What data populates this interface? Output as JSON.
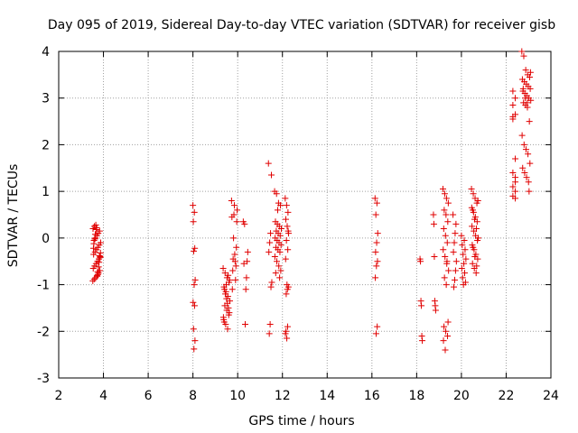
{
  "chart_data": {
    "type": "scatter",
    "title": "Day 095 of 2019, Sidereal Day-to-day VTEC variation (SDTVAR) for receiver gisb",
    "xlabel": "GPS time / hours",
    "ylabel": "SDTVAR / TECUs",
    "xlim": [
      2,
      24
    ],
    "ylim": [
      -3,
      4
    ],
    "xticks": [
      2,
      4,
      6,
      8,
      10,
      12,
      14,
      16,
      18,
      20,
      22,
      24
    ],
    "yticks": [
      -3,
      -2,
      -1,
      0,
      1,
      2,
      3,
      4
    ],
    "grid": true,
    "marker": "+",
    "color": "#e00000",
    "series": [
      {
        "name": "SDTVAR",
        "clusters": [
          {
            "x": 3.7,
            "width": 0.35,
            "points": [
              -0.92,
              -0.88,
              -0.85,
              -0.8,
              -0.75,
              -0.7,
              -0.65,
              -0.6,
              -0.55,
              -0.5,
              -0.45,
              -0.4,
              -0.35,
              -0.3,
              -0.25,
              -0.2,
              -0.15,
              -0.1,
              -0.05,
              0.0,
              0.05,
              0.1,
              0.15,
              0.2,
              0.25,
              0.28,
              -0.82,
              -0.62,
              -0.42,
              -0.22,
              -0.02,
              0.18,
              -0.72,
              -0.52,
              -0.32,
              -0.12,
              0.08,
              0.22,
              -0.78,
              -0.38
            ]
          },
          {
            "x": 8.05,
            "width": 0.1,
            "points": [
              0.7,
              0.55,
              0.35,
              -0.22,
              -0.28,
              -0.9,
              -1.0,
              -1.38,
              -1.45,
              -1.95,
              -2.2,
              -2.38
            ]
          },
          {
            "x": 9.5,
            "width": 0.3,
            "points": [
              -0.65,
              -0.75,
              -0.85,
              -0.95,
              -1.05,
              -1.15,
              -1.25,
              -1.35,
              -1.45,
              -1.55,
              -1.65,
              -1.75,
              -1.85,
              -1.95,
              -0.9,
              -1.1,
              -1.3,
              -1.5,
              -1.7,
              -1.2,
              -1.4,
              -1.6,
              -1.8,
              -1.0,
              -0.8
            ]
          },
          {
            "x": 9.85,
            "width": 0.25,
            "points": [
              0.8,
              0.7,
              0.6,
              0.5,
              0.35,
              0.0,
              -0.2,
              -0.45,
              -0.6,
              -0.7,
              -0.9,
              -1.1,
              -0.5,
              0.45,
              -0.35
            ]
          },
          {
            "x": 10.35,
            "width": 0.2,
            "points": [
              0.35,
              -0.3,
              -0.5,
              -0.85,
              -1.1,
              -1.85,
              0.3,
              -0.55
            ]
          },
          {
            "x": 11.45,
            "width": 0.15,
            "points": [
              1.6,
              1.35,
              0.1,
              -0.1,
              -0.3,
              -0.95,
              -1.05,
              -1.85,
              -2.05
            ]
          },
          {
            "x": 11.8,
            "width": 0.3,
            "points": [
              1.0,
              0.95,
              0.75,
              0.7,
              0.35,
              0.3,
              0.25,
              0.2,
              0.15,
              0.1,
              0.05,
              0.0,
              -0.05,
              -0.1,
              -0.15,
              -0.2,
              -0.25,
              -0.3,
              -0.4,
              -0.5,
              -0.6,
              -0.7,
              -0.75,
              0.6,
              -0.85
            ]
          },
          {
            "x": 12.2,
            "width": 0.15,
            "points": [
              0.85,
              0.7,
              0.55,
              0.4,
              0.25,
              0.1,
              -0.05,
              -0.25,
              -0.45,
              -1.0,
              -1.05,
              -1.2,
              -1.9,
              -2.05,
              -2.15,
              0.15,
              -2.0,
              -1.1
            ]
          },
          {
            "x": 16.2,
            "width": 0.12,
            "points": [
              0.85,
              0.75,
              0.5,
              0.1,
              -0.1,
              -0.3,
              -0.5,
              -0.6,
              -0.85,
              -1.9,
              -2.05
            ]
          },
          {
            "x": 18.2,
            "width": 0.1,
            "points": [
              -0.45,
              -0.5,
              -1.35,
              -1.45,
              -2.1,
              -2.2
            ]
          },
          {
            "x": 18.8,
            "width": 0.1,
            "points": [
              0.5,
              0.3,
              -0.4,
              -1.35,
              -1.45,
              -1.55
            ]
          },
          {
            "x": 19.3,
            "width": 0.25,
            "points": [
              1.05,
              0.95,
              0.85,
              0.75,
              0.6,
              0.5,
              0.35,
              0.2,
              0.05,
              -0.1,
              -0.25,
              -0.4,
              -0.55,
              -0.7,
              -0.85,
              -1.0,
              -1.8,
              -1.9,
              -2.0,
              -2.1,
              -2.2,
              -2.4,
              -0.5
            ]
          },
          {
            "x": 19.7,
            "width": 0.15,
            "points": [
              0.5,
              0.3,
              0.1,
              -0.1,
              -0.3,
              -0.5,
              -0.7,
              -0.9,
              -1.05
            ]
          },
          {
            "x": 20.1,
            "width": 0.2,
            "points": [
              0.05,
              -0.05,
              -0.15,
              -0.25,
              -0.35,
              -0.45,
              -0.55,
              -0.65,
              -0.75,
              -0.85,
              -0.95,
              -1.0
            ]
          },
          {
            "x": 20.6,
            "width": 0.3,
            "points": [
              1.05,
              0.95,
              0.85,
              0.75,
              0.65,
              0.55,
              0.45,
              0.35,
              0.25,
              0.15,
              0.05,
              -0.05,
              -0.15,
              -0.25,
              -0.35,
              -0.45,
              -0.55,
              -0.65,
              -0.75,
              0.8,
              0.6,
              0.4,
              0.2,
              0.0,
              -0.2,
              -0.4,
              -0.6
            ]
          },
          {
            "x": 22.4,
            "width": 0.2,
            "points": [
              3.15,
              3.0,
              2.85,
              2.65,
              2.55,
              1.7,
              1.4,
              1.2,
              1.1,
              1.0,
              0.9,
              0.85,
              2.6,
              1.3
            ]
          },
          {
            "x": 22.9,
            "width": 0.4,
            "points": [
              4.0,
              3.9,
              3.6,
              3.5,
              3.45,
              3.4,
              3.35,
              3.3,
              3.25,
              3.2,
              3.15,
              3.1,
              3.05,
              3.0,
              2.95,
              2.9,
              2.85,
              2.8,
              2.5,
              2.2,
              2.0,
              1.9,
              1.8,
              1.6,
              1.5,
              1.4,
              1.3,
              1.2,
              3.55,
              3.2,
              3.0,
              2.9,
              1.0
            ]
          }
        ]
      }
    ]
  }
}
